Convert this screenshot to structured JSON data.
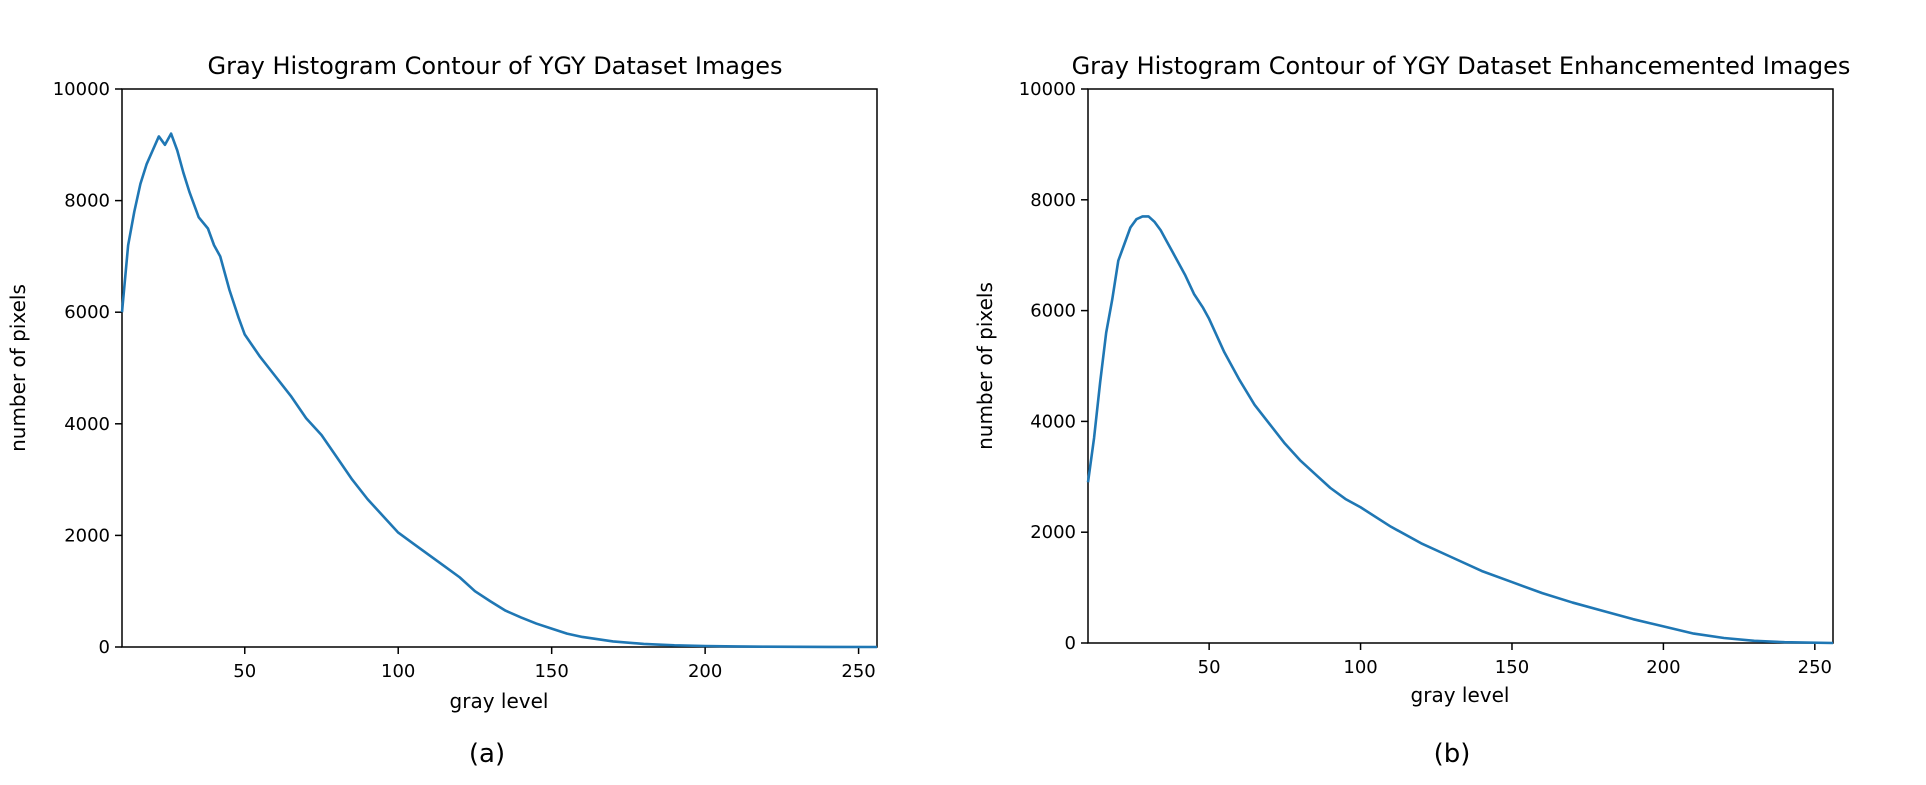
{
  "chart_data": [
    {
      "type": "line",
      "title": "Gray Histogram Contour of YGY Dataset Images",
      "xlabel": "gray level",
      "ylabel": "number of pixels",
      "caption": "(a)",
      "xlim": [
        10,
        256
      ],
      "ylim": [
        0,
        10000
      ],
      "xticks": [
        50,
        100,
        150,
        200,
        250
      ],
      "yticks": [
        0,
        2000,
        4000,
        6000,
        8000,
        10000
      ],
      "grid": false,
      "color": "#1f77b4",
      "series": [
        {
          "x": [
            10,
            12,
            14,
            16,
            18,
            20,
            22,
            24,
            26,
            28,
            30,
            32,
            35,
            38,
            40,
            42,
            45,
            48,
            50,
            55,
            60,
            65,
            70,
            75,
            80,
            85,
            90,
            95,
            100,
            105,
            110,
            115,
            120,
            125,
            130,
            135,
            140,
            145,
            150,
            155,
            160,
            170,
            180,
            190,
            200,
            210,
            220,
            230,
            240,
            256
          ],
          "y": [
            6000,
            7200,
            7800,
            8300,
            8650,
            8900,
            9150,
            9000,
            9200,
            8900,
            8500,
            8150,
            7700,
            7500,
            7200,
            7000,
            6400,
            5900,
            5600,
            5200,
            4850,
            4500,
            4100,
            3800,
            3400,
            3000,
            2650,
            2350,
            2050,
            1850,
            1650,
            1450,
            1250,
            1000,
            820,
            650,
            530,
            420,
            330,
            240,
            180,
            100,
            55,
            30,
            18,
            10,
            6,
            4,
            2,
            0
          ]
        }
      ]
    },
    {
      "type": "line",
      "title": "Gray Histogram Contour of YGY Dataset Enhancemented Images",
      "xlabel": "gray level",
      "ylabel": "number of pixels",
      "caption": "(b)",
      "xlim": [
        10,
        256
      ],
      "ylim": [
        0,
        10000
      ],
      "xticks": [
        50,
        100,
        150,
        200,
        250
      ],
      "yticks": [
        0,
        2000,
        4000,
        6000,
        8000,
        10000
      ],
      "grid": false,
      "color": "#1f77b4",
      "series": [
        {
          "x": [
            10,
            12,
            14,
            16,
            18,
            20,
            22,
            24,
            26,
            28,
            30,
            32,
            34,
            36,
            38,
            40,
            42,
            45,
            48,
            50,
            55,
            60,
            65,
            70,
            75,
            80,
            85,
            90,
            95,
            100,
            110,
            120,
            130,
            140,
            150,
            160,
            170,
            180,
            190,
            200,
            210,
            220,
            230,
            240,
            256
          ],
          "y": [
            2900,
            3700,
            4700,
            5600,
            6200,
            6900,
            7200,
            7500,
            7650,
            7700,
            7700,
            7600,
            7450,
            7250,
            7050,
            6850,
            6650,
            6300,
            6050,
            5850,
            5250,
            4750,
            4300,
            3950,
            3600,
            3300,
            3050,
            2800,
            2600,
            2450,
            2100,
            1800,
            1550,
            1300,
            1100,
            900,
            730,
            580,
            430,
            300,
            170,
            90,
            40,
            15,
            0
          ]
        }
      ]
    }
  ]
}
